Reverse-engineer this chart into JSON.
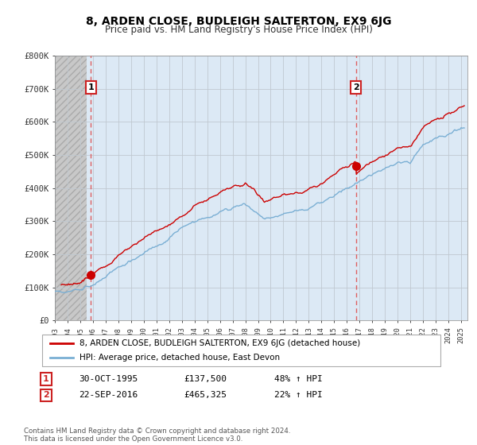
{
  "title": "8, ARDEN CLOSE, BUDLEIGH SALTERTON, EX9 6JG",
  "subtitle": "Price paid vs. HM Land Registry's House Price Index (HPI)",
  "background_color": "#ffffff",
  "plot_bg_color": "#dce9f5",
  "grid_color": "#c0c8d0",
  "hatch_area_end": 1995.5,
  "red_line_color": "#cc0000",
  "blue_line_color": "#7aafd4",
  "dashed_red_color": "#e05050",
  "marker_color": "#cc0000",
  "ylim": [
    0,
    800000
  ],
  "yticks": [
    0,
    100000,
    200000,
    300000,
    400000,
    500000,
    600000,
    700000,
    800000
  ],
  "ytick_labels": [
    "£0",
    "£100K",
    "£200K",
    "£300K",
    "£400K",
    "£500K",
    "£600K",
    "£700K",
    "£800K"
  ],
  "xlim_start": 1993.0,
  "xlim_end": 2025.5,
  "xtick_years": [
    1993,
    1994,
    1995,
    1996,
    1997,
    1998,
    1999,
    2000,
    2001,
    2002,
    2003,
    2004,
    2005,
    2006,
    2007,
    2008,
    2009,
    2010,
    2011,
    2012,
    2013,
    2014,
    2015,
    2016,
    2017,
    2018,
    2019,
    2020,
    2021,
    2022,
    2023,
    2024,
    2025
  ],
  "sale1_x": 1995.83,
  "sale1_y": 137500,
  "sale2_x": 2016.72,
  "sale2_y": 465325,
  "legend_line1": "8, ARDEN CLOSE, BUDLEIGH SALTERTON, EX9 6JG (detached house)",
  "legend_line2": "HPI: Average price, detached house, East Devon",
  "annotation1_label": "1",
  "annotation1_date": "30-OCT-1995",
  "annotation1_price": "£137,500",
  "annotation1_hpi": "48% ↑ HPI",
  "annotation2_label": "2",
  "annotation2_date": "22-SEP-2016",
  "annotation2_price": "£465,325",
  "annotation2_hpi": "22% ↑ HPI",
  "footer": "Contains HM Land Registry data © Crown copyright and database right 2024.\nThis data is licensed under the Open Government Licence v3.0."
}
